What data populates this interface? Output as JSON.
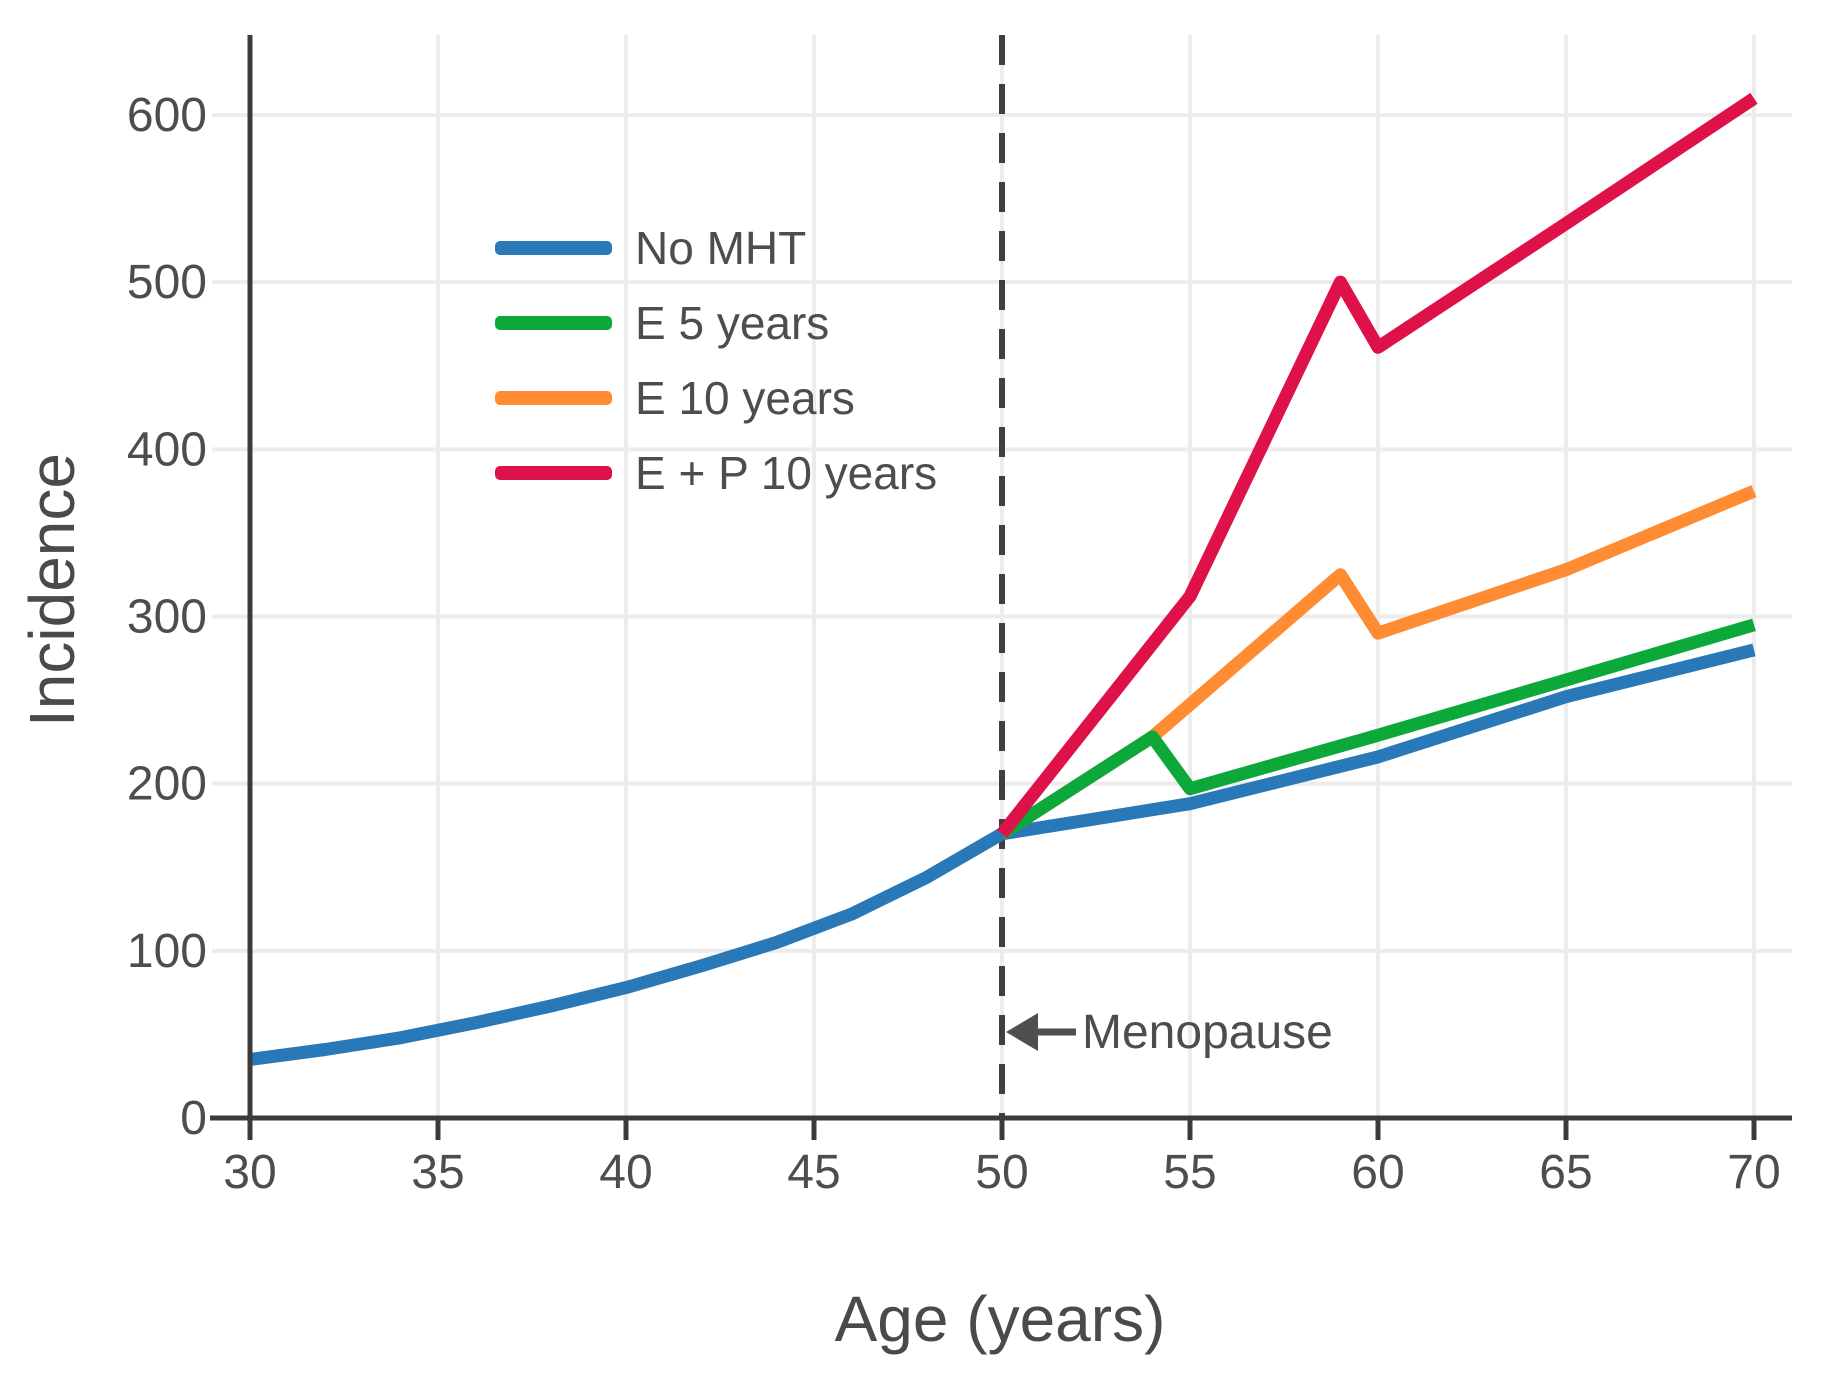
{
  "chart_data": {
    "type": "line",
    "title": "",
    "xlabel": "Age (years)",
    "ylabel": "Incidence",
    "x_ticks": [
      30,
      35,
      40,
      45,
      50,
      55,
      60,
      65,
      70
    ],
    "y_ticks": [
      0,
      100,
      200,
      300,
      400,
      500,
      600
    ],
    "xlim": [
      30,
      71
    ],
    "ylim": [
      0,
      648
    ],
    "grid": true,
    "legend_position": "upper-left-inside",
    "series": [
      {
        "name": "No MHT",
        "color": "#2979b9",
        "x": [
          30,
          32,
          34,
          36,
          38,
          40,
          42,
          44,
          46,
          48,
          50,
          55,
          60,
          65,
          70
        ],
        "y": [
          35,
          41,
          48,
          57,
          67,
          78,
          91,
          105,
          122,
          144,
          170,
          188,
          216,
          252,
          280
        ]
      },
      {
        "name": "E 5 years",
        "color": "#0ca93a",
        "x": [
          50,
          54,
          55,
          60,
          65,
          70
        ],
        "y": [
          170,
          228,
          197,
          229,
          262,
          295
        ]
      },
      {
        "name": "E 10 years",
        "color": "#ff8c32",
        "x": [
          50,
          54,
          59,
          60,
          65,
          70
        ],
        "y": [
          170,
          228,
          325,
          290,
          328,
          375
        ]
      },
      {
        "name": "E + P 10 years",
        "color": "#de1148",
        "x": [
          50,
          55,
          59,
          60,
          65,
          70
        ],
        "y": [
          170,
          312,
          500,
          461,
          535,
          610
        ]
      }
    ],
    "annotation": {
      "text": "Menopause",
      "arrow_direction": "left",
      "at_x": 50
    },
    "menopause_line": {
      "x": 50,
      "style": "dashed"
    },
    "style": {
      "grid_color": "#ececec",
      "axis_color": "#3b3b3b",
      "dashed_line_color": "#3f3f3f",
      "tick_label_color": "#4d4d4d",
      "arrow_color": "#4f4f4f",
      "background": "#ffffff"
    }
  }
}
